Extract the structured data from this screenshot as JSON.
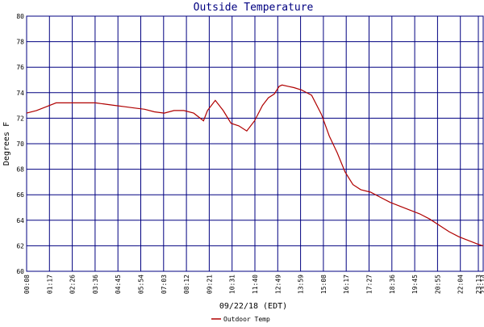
{
  "chart_data": {
    "type": "line",
    "title": "Outside Temperature",
    "xlabel": "09/22/18 (EDT)",
    "ylabel": "Degrees F",
    "ylim": [
      60,
      80
    ],
    "y_ticks": [
      60,
      62,
      64,
      66,
      68,
      70,
      72,
      74,
      76,
      78,
      80
    ],
    "x_range_hours": [
      0,
      23.23
    ],
    "x_tick_labels": [
      "00:08",
      "01:17",
      "02:26",
      "03:36",
      "04:45",
      "05:54",
      "07:03",
      "08:12",
      "09:21",
      "10:31",
      "11:40",
      "12:49",
      "13:59",
      "15:08",
      "16:17",
      "17:27",
      "18:36",
      "19:45",
      "20:55",
      "22:04",
      "23:13",
      "23:14"
    ],
    "grid": true,
    "legend_position": "bottom-center",
    "colors": {
      "series": "#b00000",
      "grid": "#000080",
      "title": "#000080"
    },
    "series": [
      {
        "name": "Outdoor Temp",
        "x_hours": [
          0.0,
          0.5,
          1.0,
          1.5,
          2.0,
          2.5,
          3.0,
          3.5,
          4.0,
          4.5,
          5.0,
          5.5,
          6.0,
          6.5,
          7.0,
          7.5,
          8.0,
          8.5,
          9.0,
          9.2,
          9.6,
          10.0,
          10.4,
          10.8,
          11.2,
          11.6,
          12.0,
          12.3,
          12.6,
          12.85,
          13.0,
          13.3,
          13.6,
          14.0,
          14.5,
          15.0,
          15.4,
          15.8,
          16.2,
          16.6,
          17.0,
          17.5,
          18.0,
          18.5,
          19.0,
          19.5,
          20.0,
          20.5,
          21.0,
          21.5,
          22.0,
          22.5,
          23.0,
          23.23
        ],
        "y_values": [
          72.4,
          72.6,
          72.9,
          73.2,
          73.2,
          73.2,
          73.2,
          73.2,
          73.1,
          73.0,
          72.9,
          72.8,
          72.7,
          72.5,
          72.4,
          72.6,
          72.6,
          72.4,
          71.8,
          72.6,
          73.4,
          72.6,
          71.6,
          71.4,
          71.0,
          71.8,
          73.0,
          73.6,
          73.9,
          74.5,
          74.6,
          74.5,
          74.4,
          74.2,
          73.8,
          72.3,
          70.6,
          69.3,
          67.8,
          66.8,
          66.4,
          66.2,
          65.8,
          65.4,
          65.1,
          64.8,
          64.5,
          64.1,
          63.6,
          63.1,
          62.7,
          62.4,
          62.1,
          62.0
        ]
      }
    ]
  }
}
